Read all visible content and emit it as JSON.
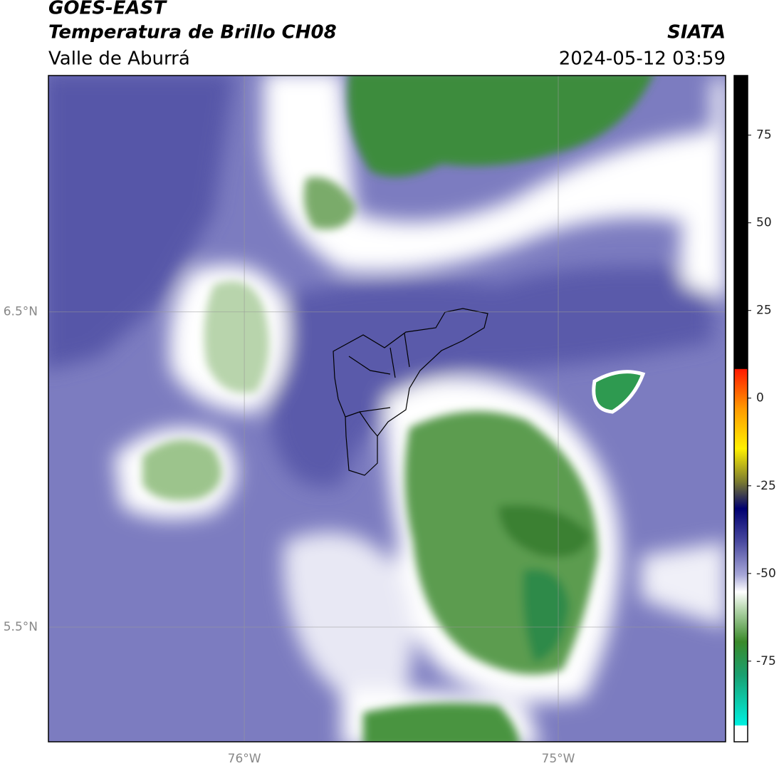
{
  "header": {
    "title": "GOES-EAST",
    "subtitle": "Temperatura de Brillo CH08",
    "region": "Valle de Aburrá",
    "source": "SIATA",
    "timestamp": "2024-05-12 03:59"
  },
  "map": {
    "xlim": [
      -76.624,
      -74.467
    ],
    "ylim": [
      5.136,
      7.25
    ],
    "xticks": [
      {
        "value": -76,
        "label": "76°W"
      },
      {
        "value": -75,
        "label": "75°W"
      }
    ],
    "yticks": [
      {
        "value": 6.5,
        "label": "6.5°N"
      },
      {
        "value": 5.5,
        "label": "5.5°N"
      }
    ],
    "grid": true
  },
  "colorbar": {
    "lim": [
      -98,
      92
    ],
    "ticks": [
      75,
      50,
      25,
      0,
      -25,
      -50,
      -75
    ]
  }
}
